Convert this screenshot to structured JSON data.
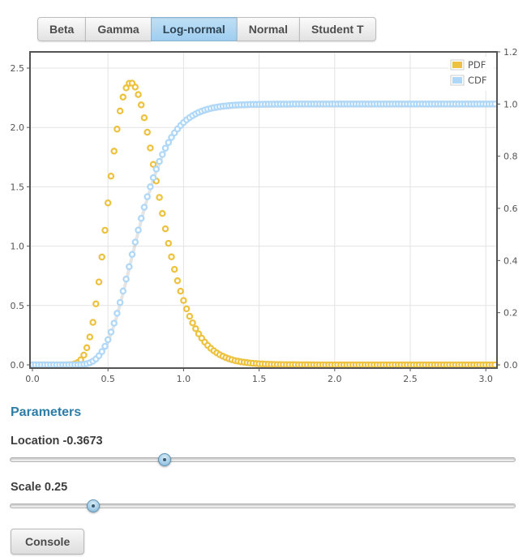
{
  "tabs": {
    "items": [
      {
        "label": "Beta",
        "active": false
      },
      {
        "label": "Gamma",
        "active": false
      },
      {
        "label": "Log-normal",
        "active": true
      },
      {
        "label": "Normal",
        "active": false
      },
      {
        "label": "Student T",
        "active": false
      }
    ]
  },
  "chart_data": {
    "type": "scatter",
    "description": "Log-normal distribution PDF and CDF drawn as open-circle markers",
    "distribution": "log-normal",
    "params": {
      "location": -0.3673,
      "scale": 0.25
    },
    "x": {
      "min": 0,
      "max": 3.06,
      "step": 0.02
    },
    "axes": {
      "x_ticks": [
        "0.0",
        "0.5",
        "1.0",
        "1.5",
        "2.0",
        "2.5",
        "3.0"
      ],
      "y_left_ticks": [
        "0.0",
        "0.5",
        "1.0",
        "1.5",
        "2.0",
        "2.5"
      ],
      "y_right_ticks": [
        "0.0",
        "0.2",
        "0.4",
        "0.6",
        "0.8",
        "1.0",
        "1.2"
      ],
      "y_right_range": [
        0,
        1.2
      ],
      "grid": true
    },
    "series": [
      {
        "name": "PDF",
        "color": "#edc240",
        "yaxis": "left",
        "marker": "open-circle"
      },
      {
        "name": "CDF",
        "color": "#afd8f8",
        "yaxis": "right",
        "marker": "open-circle"
      }
    ],
    "legend": {
      "position": "top-right",
      "entries": [
        "PDF",
        "CDF"
      ]
    },
    "sample_points": {
      "x": [
        0,
        0.25,
        0.5,
        0.65,
        0.75,
        1.0,
        1.25,
        1.5,
        1.75,
        2.0,
        2.5,
        3.0
      ],
      "pdf": [
        0,
        0.002,
        1.366,
        2.377,
        2.023,
        0.542,
        0.079,
        0.009,
        0.001,
        0,
        0,
        0
      ],
      "cdf": [
        0,
        0.0,
        0.096,
        0.4,
        0.625,
        0.929,
        0.991,
        0.999,
        1.0,
        1.0,
        1.0,
        1.0
      ]
    }
  },
  "parameters": {
    "heading": "Parameters",
    "sliders": [
      {
        "name": "location",
        "label": "Location -0.3673",
        "value": -0.3673,
        "position_pct": 30.6
      },
      {
        "name": "scale",
        "label": "Scale 0.25",
        "value": 0.25,
        "position_pct": 16.5
      }
    ]
  },
  "console": {
    "label": "Console"
  },
  "colors": {
    "pdf": "#edc240",
    "cdf": "#afd8f8",
    "grid": "#e3e3e3",
    "plot_border": "#545454",
    "tick_label": "#545454",
    "heading": "#2e7da6",
    "active_tab": "#a9d5f2"
  }
}
